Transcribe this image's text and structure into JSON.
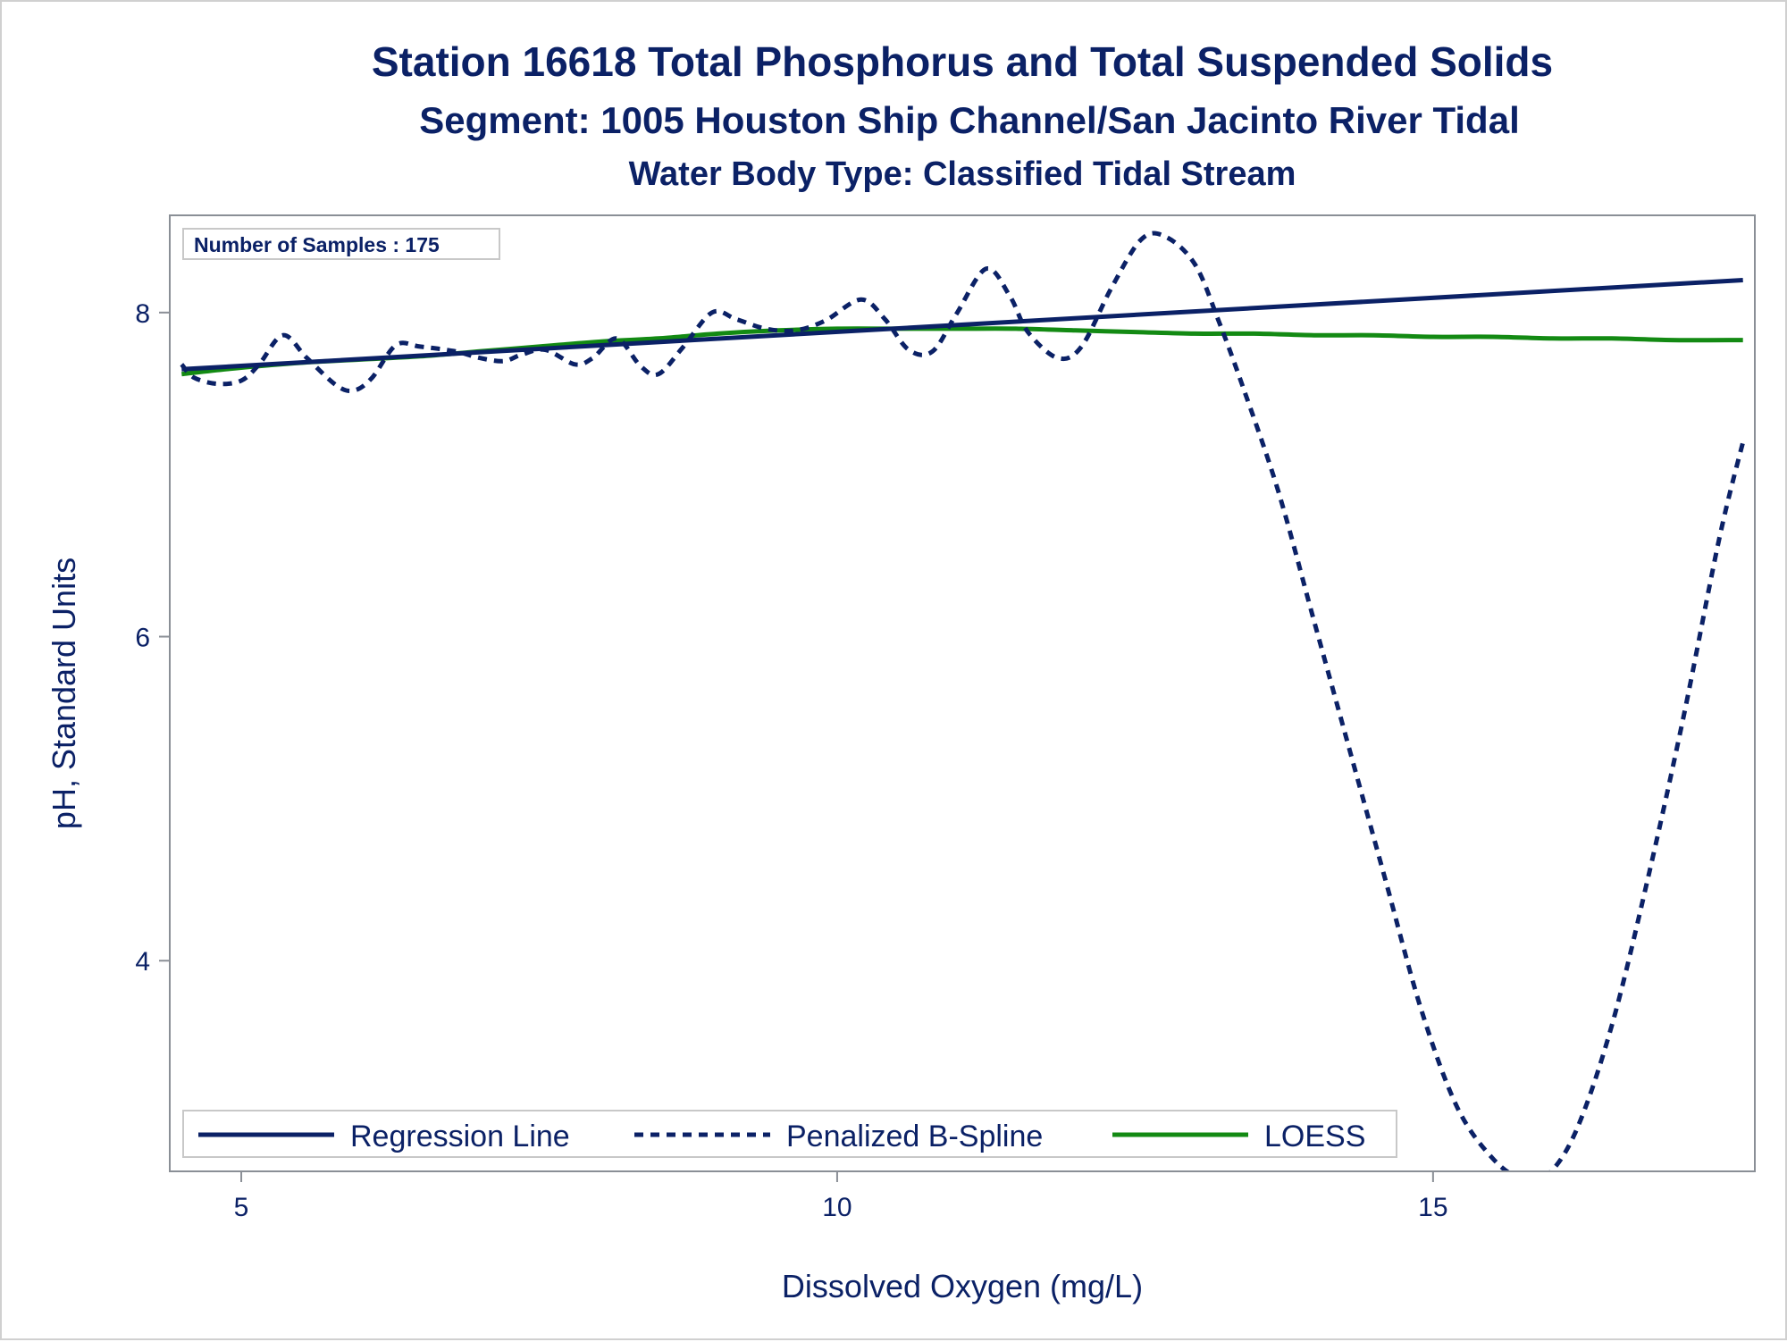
{
  "chart_data": {
    "type": "line",
    "title": "Station 16618  Total Phosphorus and Total Suspended Solids",
    "subtitle": "Segment: 1005  Houston Ship Channel/San Jacinto River Tidal",
    "subtitle2": "Water Body Type: Classified Tidal Stream",
    "xlabel": "Dissolved Oxygen (mg/L)",
    "ylabel": "pH, Standard Units",
    "xlim": [
      4.4,
      17.7
    ],
    "ylim": [
      2.7,
      8.6
    ],
    "x_ticks": [
      5,
      10,
      15
    ],
    "y_ticks": [
      4,
      6,
      8
    ],
    "grid": false,
    "legend_position": "bottom-left",
    "inset_note": "Number of Samples : 175",
    "series": [
      {
        "name": "Regression Line",
        "style": "solid",
        "color": "#0b2166",
        "x": [
          4.5,
          17.6
        ],
        "y": [
          7.65,
          8.2
        ]
      },
      {
        "name": "Penalized B-Spline",
        "style": "dashed",
        "color": "#0b2166",
        "x": [
          4.5,
          4.6,
          4.8,
          5.0,
          5.15,
          5.35,
          5.55,
          5.8,
          5.95,
          6.1,
          6.3,
          6.5,
          6.8,
          7.0,
          7.2,
          7.35,
          7.55,
          7.8,
          7.95,
          8.15,
          8.35,
          8.5,
          8.7,
          8.95,
          9.15,
          9.4,
          9.65,
          9.9,
          10.2,
          10.4,
          10.6,
          10.8,
          11.0,
          11.25,
          11.45,
          11.6,
          11.85,
          12.05,
          12.3,
          12.55,
          12.75,
          13.0,
          13.2,
          13.4,
          13.7,
          14.0,
          14.3,
          14.6,
          14.9,
          15.2,
          15.5,
          15.75,
          15.95,
          16.2,
          16.5,
          16.8,
          17.1,
          17.4,
          17.6
        ],
        "y": [
          7.68,
          7.6,
          7.56,
          7.58,
          7.68,
          7.86,
          7.72,
          7.55,
          7.52,
          7.6,
          7.8,
          7.79,
          7.76,
          7.72,
          7.7,
          7.74,
          7.77,
          7.68,
          7.72,
          7.84,
          7.67,
          7.62,
          7.78,
          8.0,
          7.96,
          7.9,
          7.89,
          7.95,
          8.08,
          7.96,
          7.77,
          7.76,
          7.99,
          8.27,
          8.1,
          7.88,
          7.72,
          7.79,
          8.15,
          8.45,
          8.47,
          8.3,
          7.95,
          7.55,
          6.9,
          6.1,
          5.3,
          4.5,
          3.7,
          3.1,
          2.78,
          2.65,
          2.67,
          2.95,
          3.6,
          4.5,
          5.5,
          6.6,
          7.2
        ]
      },
      {
        "name": "LOESS",
        "style": "solid",
        "color": "#138a13",
        "x": [
          4.5,
          5.0,
          5.5,
          6.0,
          6.5,
          7.0,
          7.5,
          8.0,
          8.5,
          9.0,
          9.5,
          10.0,
          10.5,
          11.0,
          11.5,
          12.0,
          12.5,
          13.0,
          13.5,
          14.0,
          14.5,
          15.0,
          15.5,
          16.0,
          16.5,
          17.0,
          17.6
        ],
        "y": [
          7.62,
          7.66,
          7.69,
          7.71,
          7.73,
          7.76,
          7.79,
          7.82,
          7.84,
          7.87,
          7.89,
          7.9,
          7.9,
          7.9,
          7.9,
          7.89,
          7.88,
          7.87,
          7.87,
          7.86,
          7.86,
          7.85,
          7.85,
          7.84,
          7.84,
          7.83,
          7.83
        ]
      }
    ]
  }
}
